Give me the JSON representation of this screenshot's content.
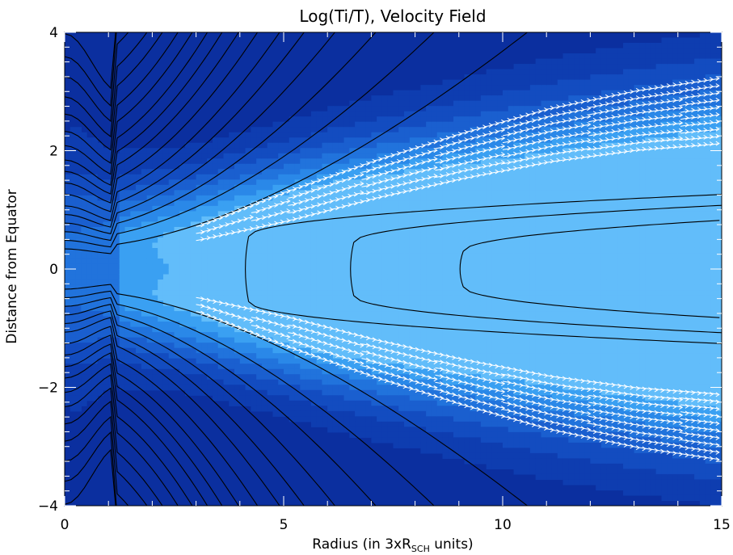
{
  "chart_data": {
    "type": "heatmap",
    "title": "Log(Ti/T), Velocity Field",
    "xlabel": "Radius (in 3xR",
    "xlabel_sub": "SCH",
    "xlabel_tail": " units)",
    "ylabel": "Distance from Equator",
    "xlim": [
      0,
      15
    ],
    "ylim": [
      -4,
      4
    ],
    "xticks": [
      {
        "value": 0,
        "label": "0"
      },
      {
        "value": 5,
        "label": "5"
      },
      {
        "value": 10,
        "label": "10"
      },
      {
        "value": 15,
        "label": "15"
      }
    ],
    "yticks": [
      {
        "value": -4,
        "label": "−4"
      },
      {
        "value": -2,
        "label": "−2"
      },
      {
        "value": 0,
        "label": "0"
      },
      {
        "value": 2,
        "label": "2"
      },
      {
        "value": 4,
        "label": "4"
      }
    ],
    "colors": {
      "background": "#0b2f9f",
      "levels": [
        "#0b2f9f",
        "#0e3db0",
        "#134cc0",
        "#1a5fcf",
        "#2173dc",
        "#2a88e8",
        "#3aa0f2",
        "#62bdfa"
      ],
      "contour": "#000000",
      "vectors": "#ffffff"
    },
    "series": [
      {
        "name": "velocity vectors (upper arm)",
        "x_start": 3,
        "x_end": 14.8,
        "center": [
          [
            3,
            0.6
          ],
          [
            5,
            1.05
          ],
          [
            7,
            1.5
          ],
          [
            9,
            1.9
          ],
          [
            11,
            2.25
          ],
          [
            13,
            2.5
          ],
          [
            14.8,
            2.65
          ]
        ],
        "halfwidth": [
          [
            3,
            0.12
          ],
          [
            5,
            0.25
          ],
          [
            8,
            0.35
          ],
          [
            11,
            0.45
          ],
          [
            14.8,
            0.55
          ]
        ]
      },
      {
        "name": "velocity vectors (lower arm)",
        "x_start": 3,
        "x_end": 14.8,
        "center": [
          [
            3,
            -0.6
          ],
          [
            5,
            -1.05
          ],
          [
            7,
            -1.5
          ],
          [
            9,
            -1.9
          ],
          [
            11,
            -2.25
          ],
          [
            13,
            -2.5
          ],
          [
            14.8,
            -2.65
          ]
        ],
        "halfwidth": [
          [
            3,
            0.12
          ],
          [
            5,
            0.25
          ],
          [
            8,
            0.35
          ],
          [
            11,
            0.45
          ],
          [
            14.8,
            0.55
          ]
        ]
      }
    ]
  }
}
